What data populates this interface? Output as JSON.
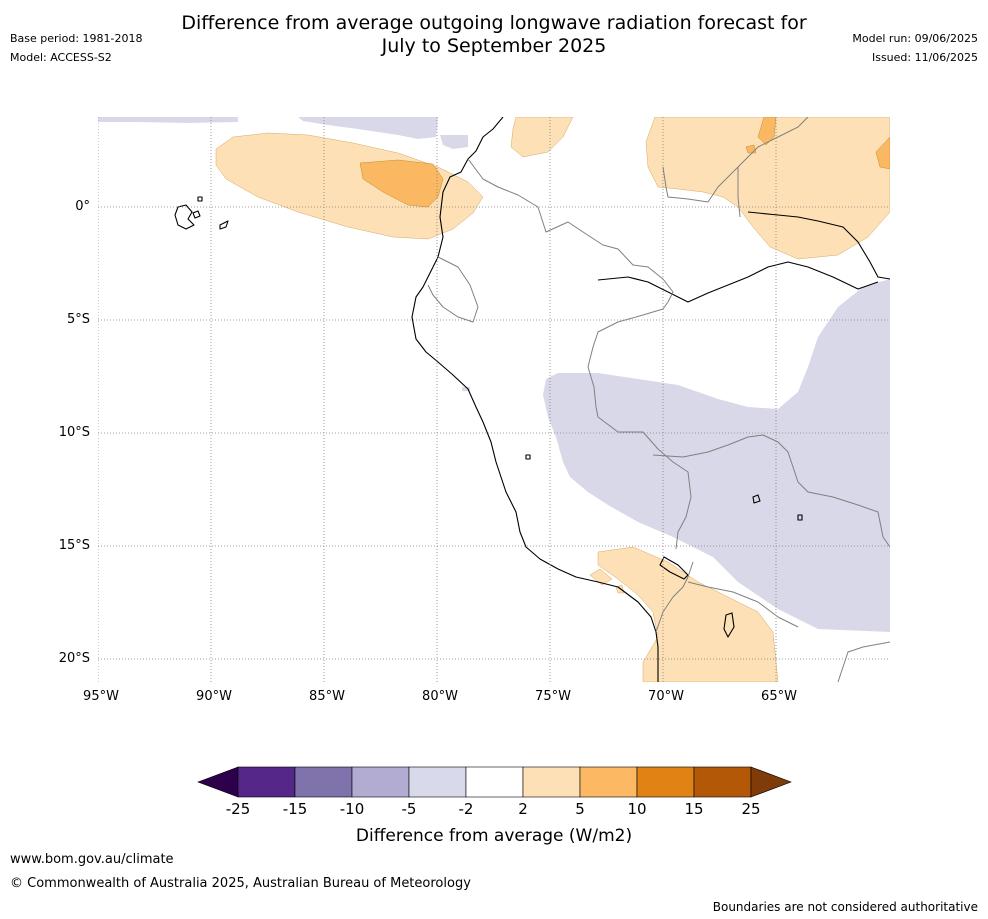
{
  "header": {
    "title_line1": "Difference from average outgoing longwave radiation forecast for",
    "title_line2": "July to September 2025",
    "base_period": "Base period: 1981-2018",
    "model": "Model: ACCESS-S2",
    "model_run": "Model run: 09/06/2025",
    "issued": "Issued: 11/06/2025"
  },
  "map": {
    "lat_labels": [
      "0°",
      "5°S",
      "10°S",
      "15°S",
      "20°S"
    ],
    "lon_labels": [
      "95°W",
      "90°W",
      "85°W",
      "80°W",
      "75°W",
      "70°W",
      "65°W"
    ],
    "colors": {
      "neg_2_5": "#d8d8e9",
      "pos_2_5": "#fde0b5",
      "pos_5_10": "#fbb863",
      "pos_10_15": "#e08214",
      "coast": "#000000",
      "border": "#808080",
      "grid": "#808080"
    }
  },
  "colorbar": {
    "ticks": [
      "-25",
      "-15",
      "-10",
      "-5",
      "-2",
      "2",
      "5",
      "10",
      "15",
      "25"
    ],
    "colors": [
      "#2d004b",
      "#542788",
      "#8073ac",
      "#b2abd2",
      "#d8daeb",
      "#ffffff",
      "#fee0b6",
      "#fdb863",
      "#e08214",
      "#b35806",
      "#7f3b08"
    ],
    "label": "Difference from average (W/m2)"
  },
  "footer": {
    "url": "www.bom.gov.au/climate",
    "copyright": "© Commonwealth of Australia 2025, Australian Bureau of Meteorology",
    "disclaimer": "Boundaries are not considered authoritative"
  }
}
